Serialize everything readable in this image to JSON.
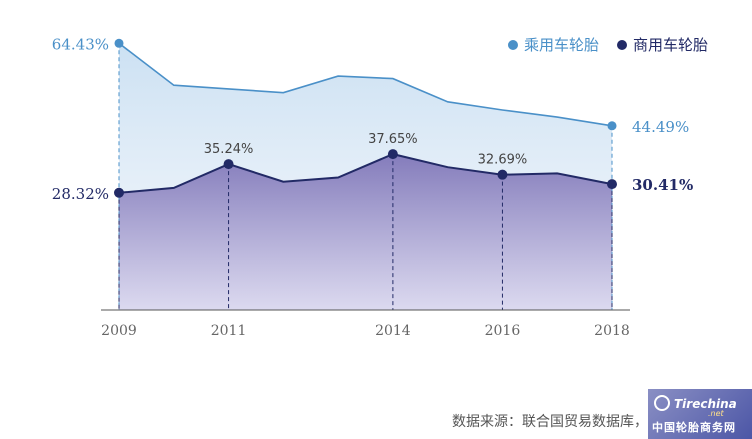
{
  "chart_data": {
    "type": "area",
    "x": [
      2009,
      2010,
      2011,
      2012,
      2013,
      2014,
      2015,
      2016,
      2017,
      2018
    ],
    "x_tick_labels": [
      "2009",
      "2011",
      "2014",
      "2016",
      "2018"
    ],
    "ylim": [
      0,
      70
    ],
    "series": [
      {
        "name": "乘用车轮胎",
        "color": "#4a90c8",
        "values": [
          64.43,
          54.3,
          53.4,
          52.5,
          56.5,
          55.9,
          50.3,
          48.3,
          46.6,
          44.49
        ]
      },
      {
        "name": "商用车轮胎",
        "color": "#222a66",
        "values": [
          28.32,
          29.5,
          35.24,
          31.0,
          32.0,
          37.65,
          34.5,
          32.69,
          33.0,
          30.41
        ]
      }
    ],
    "data_labels": {
      "passenger": [
        {
          "x": 2009,
          "text": "64.43%"
        },
        {
          "x": 2018,
          "text": "44.49%"
        }
      ],
      "commercial": [
        {
          "x": 2009,
          "text": "28.32%"
        },
        {
          "x": 2011,
          "text": "35.24%"
        },
        {
          "x": 2014,
          "text": "37.65%"
        },
        {
          "x": 2016,
          "text": "32.69%"
        },
        {
          "x": 2018,
          "text": "30.41%"
        }
      ]
    },
    "grid": false,
    "legend_position": "top-right"
  },
  "legend": {
    "passenger": "乘用车轮胎",
    "commercial": "商用车轮胎"
  },
  "source": "数据来源：联合国贸易数据库，凯睿赛驰咨询",
  "watermark": {
    "top": "Tirechina",
    "net": ".net",
    "bottom": "中国轮胎商务网"
  }
}
